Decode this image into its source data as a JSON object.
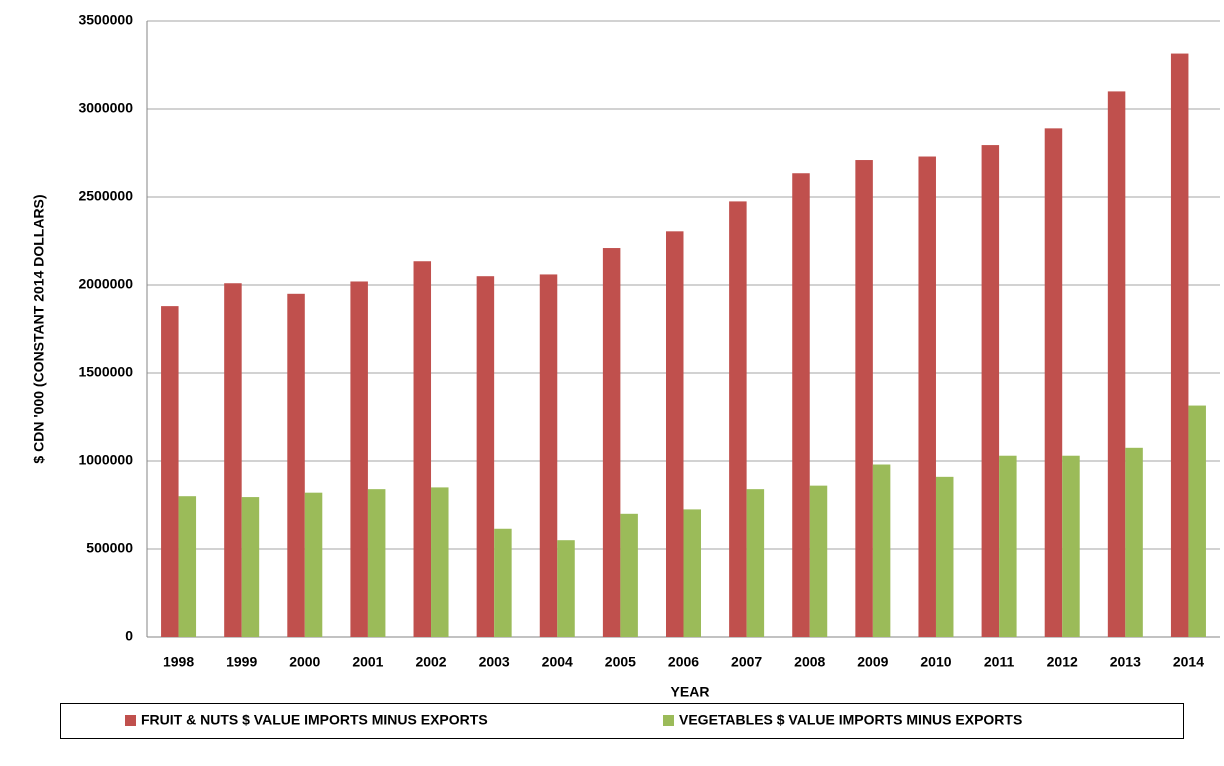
{
  "chart_data": {
    "type": "bar",
    "x_label": "YEAR",
    "y_label": "$ CDN '000 (CONSTANT 2014 DOLLARS)",
    "categories": [
      "1998",
      "1999",
      "2000",
      "2001",
      "2002",
      "2003",
      "2004",
      "2005",
      "2006",
      "2007",
      "2008",
      "2009",
      "2010",
      "2011",
      "2012",
      "2013",
      "2014"
    ],
    "series": [
      {
        "name": "FRUIT & NUTS $ VALUE IMPORTS MINUS EXPORTS",
        "color": "#c0504d",
        "values": [
          1880000,
          2010000,
          1950000,
          2020000,
          2135000,
          2050000,
          2060000,
          2210000,
          2305000,
          2475000,
          2635000,
          2710000,
          2730000,
          2795000,
          2890000,
          3100000,
          3315000
        ]
      },
      {
        "name": "VEGETABLES $ VALUE IMPORTS MINUS EXPORTS",
        "color": "#9bbb59",
        "values": [
          800000,
          795000,
          820000,
          840000,
          850000,
          615000,
          550000,
          700000,
          725000,
          840000,
          860000,
          980000,
          910000,
          1030000,
          1030000,
          1075000,
          1315000
        ]
      }
    ],
    "ylim": [
      0,
      3500000
    ],
    "yticks": [
      0,
      500000,
      1000000,
      1500000,
      2000000,
      2500000,
      3000000,
      3500000
    ],
    "grid": true,
    "legend": "bottom"
  }
}
